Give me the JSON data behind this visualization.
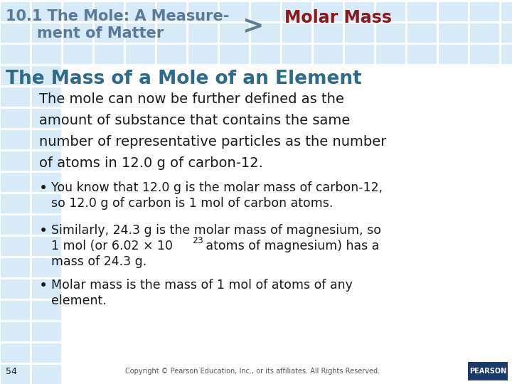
{
  "bg_color": "#ffffff",
  "grid_tile_color": "#d6eaf8",
  "grid_tile_edge": "#ffffff",
  "header_color": "#5a7a9a",
  "arrow_color": "#607d8b",
  "molar_mass_color": "#8b1a1a",
  "section_title_color": "#2e6b8a",
  "text_color": "#1a1a1a",
  "header_line1": "10.1 The Mole: A Measure-",
  "header_line2": "ment of Matter",
  "arrow": ">",
  "molar_mass_text": "Molar Mass",
  "section_title": "The Mass of a Mole of an Element",
  "main_para_lines": [
    "The mole can now be further defined as the",
    "amount of substance that contains the same",
    "number of representative particles as the number",
    "of atoms in 12.0 g of carbon-12."
  ],
  "bullet1_lines": [
    "You know that 12.0 g is the molar mass of carbon-12,",
    "so 12.0 g of carbon is 1 mol of carbon atoms."
  ],
  "bullet2_line1": "Similarly, 24.3 g is the molar mass of magnesium, so",
  "bullet2_line2_pre": "1 mol (or 6.02 × 10",
  "bullet2_sup": "23",
  "bullet2_line2_post": " atoms of magnesium) has a",
  "bullet2_line3": "mass of 24.3 g.",
  "bullet3_lines": [
    "Molar mass is the mass of 1 mol of atoms of any",
    "element."
  ],
  "page_num": "54",
  "copyright": "Copyright © Pearson Education, Inc., or its affiliates. All Rights Reserved.",
  "pearson_bg": "#1a3a6e",
  "pearson_text": "PEARSON"
}
